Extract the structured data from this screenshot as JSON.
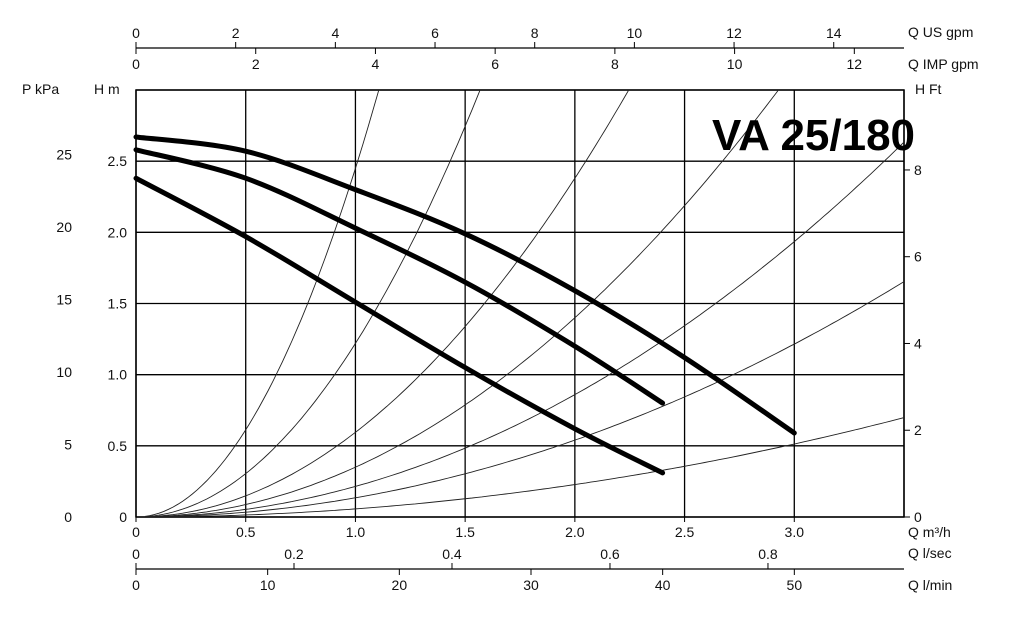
{
  "chart_data": {
    "type": "line",
    "title": "VA 25/180",
    "x_axis_label": "Q m³/h",
    "x_range": [
      0,
      3.5
    ],
    "x_ticks": [
      "0",
      "0.5",
      "1.0",
      "1.5",
      "2.0",
      "2.5",
      "3.0"
    ],
    "y_axis_label": "H m",
    "y_range": [
      0,
      3.0
    ],
    "y_ticks": [
      "0",
      "0.5",
      "1.0",
      "1.5",
      "2.0",
      "2.5"
    ],
    "grid": true,
    "secondary_axes": [
      {
        "position": "top-1",
        "label": "Q US gpm",
        "ticks": [
          "0",
          "2",
          "4",
          "6",
          "8",
          "10",
          "12",
          "14"
        ]
      },
      {
        "position": "top-2",
        "label": "Q IMP gpm",
        "ticks": [
          "0",
          "2",
          "4",
          "6",
          "8",
          "10",
          "12"
        ]
      },
      {
        "position": "left-outer",
        "label": "P kPa",
        "ticks": [
          "0",
          "5",
          "10",
          "15",
          "20",
          "25"
        ]
      },
      {
        "position": "right",
        "label": "H Ft",
        "ticks": [
          "0",
          "2",
          "4",
          "6",
          "8"
        ]
      },
      {
        "position": "bottom-2",
        "label": "Q l/sec",
        "ticks": [
          "0",
          "0.2",
          "0.4",
          "0.6",
          "0.8"
        ]
      },
      {
        "position": "bottom-3",
        "label": "Q l/min",
        "ticks": [
          "0",
          "10",
          "20",
          "30",
          "40",
          "50"
        ]
      }
    ],
    "series": [
      {
        "x": [
          0,
          0.5,
          1.0,
          1.5,
          2.0,
          2.4
        ],
        "y": [
          2.38,
          1.97,
          1.51,
          1.05,
          0.62,
          0.31
        ]
      },
      {
        "x": [
          0,
          0.5,
          1.0,
          1.5,
          2.0,
          2.4
        ],
        "y": [
          2.58,
          2.38,
          2.03,
          1.65,
          1.2,
          0.8
        ]
      },
      {
        "x": [
          0,
          0.5,
          1.0,
          1.5,
          2.0,
          2.5,
          3.0
        ],
        "y": [
          2.67,
          2.57,
          2.3,
          1.99,
          1.59,
          1.12,
          0.59
        ]
      }
    ],
    "system_curves": [
      {
        "k": 2.45
      },
      {
        "k": 1.22
      },
      {
        "k": 0.595
      },
      {
        "k": 0.35
      },
      {
        "k": 0.215
      },
      {
        "k": 0.135
      },
      {
        "k": 0.057
      }
    ]
  }
}
